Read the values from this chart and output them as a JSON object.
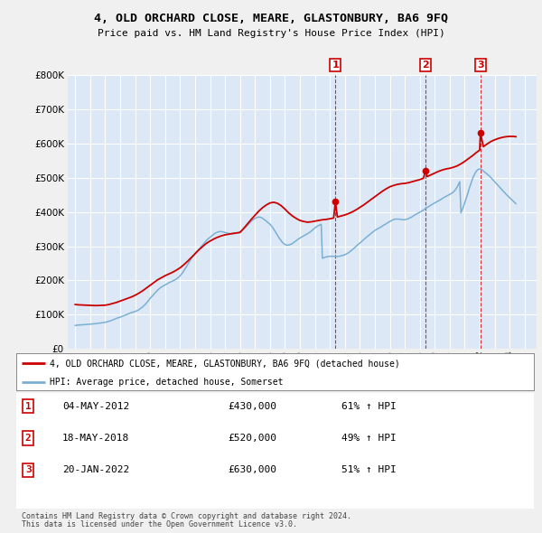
{
  "title": "4, OLD ORCHARD CLOSE, MEARE, GLASTONBURY, BA6 9FQ",
  "subtitle": "Price paid vs. HM Land Registry's House Price Index (HPI)",
  "background_color": "#f0f0f0",
  "plot_bg_color": "#dce8f5",
  "legend_bg": "#ffffff",
  "table_bg": "#ffffff",
  "red_line_label": "4, OLD ORCHARD CLOSE, MEARE, GLASTONBURY, BA6 9FQ (detached house)",
  "blue_line_label": "HPI: Average price, detached house, Somerset",
  "transactions": [
    {
      "num": 1,
      "date": "04-MAY-2012",
      "price": 430000,
      "pct": "61%",
      "x_year": 2012.37
    },
    {
      "num": 2,
      "date": "18-MAY-2018",
      "price": 520000,
      "pct": "49%",
      "x_year": 2018.38
    },
    {
      "num": 3,
      "date": "20-JAN-2022",
      "price": 630000,
      "pct": "51%",
      "x_year": 2022.05
    }
  ],
  "footer1": "Contains HM Land Registry data © Crown copyright and database right 2024.",
  "footer2": "This data is licensed under the Open Government Licence v3.0.",
  "ylim": [
    0,
    800000
  ],
  "yticks": [
    0,
    100000,
    200000,
    300000,
    400000,
    500000,
    600000,
    700000,
    800000
  ],
  "xlim_start": 1994.5,
  "xlim_end": 2025.8,
  "xtick_years": [
    1995,
    1996,
    1997,
    1998,
    1999,
    2000,
    2001,
    2002,
    2003,
    2004,
    2005,
    2006,
    2007,
    2008,
    2009,
    2010,
    2011,
    2012,
    2013,
    2014,
    2015,
    2016,
    2017,
    2018,
    2019,
    2020,
    2021,
    2022,
    2023,
    2024,
    2025
  ],
  "hpi_x": [
    1995.0,
    1995.08,
    1995.17,
    1995.25,
    1995.33,
    1995.42,
    1995.5,
    1995.58,
    1995.67,
    1995.75,
    1995.83,
    1995.92,
    1996.0,
    1996.08,
    1996.17,
    1996.25,
    1996.33,
    1996.42,
    1996.5,
    1996.58,
    1996.67,
    1996.75,
    1996.83,
    1996.92,
    1997.0,
    1997.08,
    1997.17,
    1997.25,
    1997.33,
    1997.42,
    1997.5,
    1997.58,
    1997.67,
    1997.75,
    1997.83,
    1997.92,
    1998.0,
    1998.08,
    1998.17,
    1998.25,
    1998.33,
    1998.42,
    1998.5,
    1998.58,
    1998.67,
    1998.75,
    1998.83,
    1998.92,
    1999.0,
    1999.08,
    1999.17,
    1999.25,
    1999.33,
    1999.42,
    1999.5,
    1999.58,
    1999.67,
    1999.75,
    1999.83,
    1999.92,
    2000.0,
    2000.08,
    2000.17,
    2000.25,
    2000.33,
    2000.42,
    2000.5,
    2000.58,
    2000.67,
    2000.75,
    2000.83,
    2000.92,
    2001.0,
    2001.08,
    2001.17,
    2001.25,
    2001.33,
    2001.42,
    2001.5,
    2001.58,
    2001.67,
    2001.75,
    2001.83,
    2001.92,
    2002.0,
    2002.08,
    2002.17,
    2002.25,
    2002.33,
    2002.42,
    2002.5,
    2002.58,
    2002.67,
    2002.75,
    2002.83,
    2002.92,
    2003.0,
    2003.08,
    2003.17,
    2003.25,
    2003.33,
    2003.42,
    2003.5,
    2003.58,
    2003.67,
    2003.75,
    2003.83,
    2003.92,
    2004.0,
    2004.08,
    2004.17,
    2004.25,
    2004.33,
    2004.42,
    2004.5,
    2004.58,
    2004.67,
    2004.75,
    2004.83,
    2004.92,
    2005.0,
    2005.08,
    2005.17,
    2005.25,
    2005.33,
    2005.42,
    2005.5,
    2005.58,
    2005.67,
    2005.75,
    2005.83,
    2005.92,
    2006.0,
    2006.08,
    2006.17,
    2006.25,
    2006.33,
    2006.42,
    2006.5,
    2006.58,
    2006.67,
    2006.75,
    2006.83,
    2006.92,
    2007.0,
    2007.08,
    2007.17,
    2007.25,
    2007.33,
    2007.42,
    2007.5,
    2007.58,
    2007.67,
    2007.75,
    2007.83,
    2007.92,
    2008.0,
    2008.08,
    2008.17,
    2008.25,
    2008.33,
    2008.42,
    2008.5,
    2008.58,
    2008.67,
    2008.75,
    2008.83,
    2008.92,
    2009.0,
    2009.08,
    2009.17,
    2009.25,
    2009.33,
    2009.42,
    2009.5,
    2009.58,
    2009.67,
    2009.75,
    2009.83,
    2009.92,
    2010.0,
    2010.08,
    2010.17,
    2010.25,
    2010.33,
    2010.42,
    2010.5,
    2010.58,
    2010.67,
    2010.75,
    2010.83,
    2010.92,
    2011.0,
    2011.08,
    2011.17,
    2011.25,
    2011.33,
    2011.42,
    2011.5,
    2011.58,
    2011.67,
    2011.75,
    2011.83,
    2011.92,
    2012.0,
    2012.08,
    2012.17,
    2012.25,
    2012.33,
    2012.42,
    2012.5,
    2012.58,
    2012.67,
    2012.75,
    2012.83,
    2012.92,
    2013.0,
    2013.08,
    2013.17,
    2013.25,
    2013.33,
    2013.42,
    2013.5,
    2013.58,
    2013.67,
    2013.75,
    2013.83,
    2013.92,
    2014.0,
    2014.08,
    2014.17,
    2014.25,
    2014.33,
    2014.42,
    2014.5,
    2014.58,
    2014.67,
    2014.75,
    2014.83,
    2014.92,
    2015.0,
    2015.08,
    2015.17,
    2015.25,
    2015.33,
    2015.42,
    2015.5,
    2015.58,
    2015.67,
    2015.75,
    2015.83,
    2015.92,
    2016.0,
    2016.08,
    2016.17,
    2016.25,
    2016.33,
    2016.42,
    2016.5,
    2016.58,
    2016.67,
    2016.75,
    2016.83,
    2016.92,
    2017.0,
    2017.08,
    2017.17,
    2017.25,
    2017.33,
    2017.42,
    2017.5,
    2017.58,
    2017.67,
    2017.75,
    2017.83,
    2017.92,
    2018.0,
    2018.08,
    2018.17,
    2018.25,
    2018.33,
    2018.42,
    2018.5,
    2018.58,
    2018.67,
    2018.75,
    2018.83,
    2018.92,
    2019.0,
    2019.08,
    2019.17,
    2019.25,
    2019.33,
    2019.42,
    2019.5,
    2019.58,
    2019.67,
    2019.75,
    2019.83,
    2019.92,
    2020.0,
    2020.08,
    2020.17,
    2020.25,
    2020.33,
    2020.42,
    2020.5,
    2020.58,
    2020.67,
    2020.75,
    2020.83,
    2020.92,
    2021.0,
    2021.08,
    2021.17,
    2021.25,
    2021.33,
    2021.42,
    2021.5,
    2021.58,
    2021.67,
    2021.75,
    2021.83,
    2021.92,
    2022.0,
    2022.08,
    2022.17,
    2022.25,
    2022.33,
    2022.42,
    2022.5,
    2022.58,
    2022.67,
    2022.75,
    2022.83,
    2022.92,
    2023.0,
    2023.08,
    2023.17,
    2023.25,
    2023.33,
    2023.42,
    2023.5,
    2023.58,
    2023.67,
    2023.75,
    2023.83,
    2023.92,
    2024.0,
    2024.08,
    2024.17,
    2024.25,
    2024.33,
    2024.42
  ],
  "hpi_y": [
    69000,
    69500,
    70000,
    70200,
    70500,
    70800,
    71000,
    71200,
    71500,
    71800,
    72000,
    72200,
    72500,
    72800,
    73200,
    73500,
    74000,
    74500,
    75000,
    75500,
    76000,
    76500,
    77000,
    77500,
    78000,
    79000,
    80000,
    81000,
    82000,
    83500,
    85000,
    86500,
    88000,
    89500,
    91000,
    92000,
    93000,
    94500,
    96000,
    97500,
    99000,
    100500,
    102000,
    103500,
    105000,
    106500,
    107500,
    108500,
    109500,
    111000,
    113000,
    115000,
    117500,
    120000,
    123000,
    126500,
    130000,
    134000,
    138500,
    143000,
    148000,
    152000,
    156000,
    160000,
    164000,
    168000,
    172000,
    175000,
    178000,
    181000,
    183000,
    185000,
    187000,
    189000,
    191000,
    193500,
    195000,
    196500,
    198000,
    200000,
    202000,
    204500,
    207000,
    210000,
    214000,
    218000,
    223000,
    228000,
    234000,
    240000,
    246000,
    252000,
    258000,
    264000,
    269000,
    274000,
    279000,
    283000,
    287000,
    291000,
    295000,
    299000,
    303000,
    307500,
    312000,
    316000,
    320000,
    323000,
    326000,
    329000,
    332000,
    335000,
    337500,
    339500,
    341000,
    342000,
    342500,
    342500,
    342000,
    341000,
    340000,
    339000,
    338000,
    337000,
    336500,
    336000,
    336000,
    336500,
    337000,
    338000,
    339000,
    340000,
    342000,
    344000,
    347000,
    350000,
    353500,
    357000,
    361000,
    365000,
    369000,
    372500,
    376000,
    378500,
    381000,
    383000,
    384500,
    385000,
    384500,
    383500,
    381500,
    379000,
    376000,
    373000,
    370000,
    367000,
    364000,
    360000,
    355000,
    350000,
    344000,
    338000,
    332000,
    326000,
    320500,
    315500,
    311000,
    307500,
    305000,
    303500,
    303000,
    303500,
    304500,
    306000,
    308000,
    310500,
    313000,
    316000,
    319000,
    321500,
    324000,
    326000,
    328000,
    330000,
    332000,
    334000,
    336000,
    338500,
    341000,
    344000,
    347000,
    350000,
    353000,
    356000,
    358000,
    360000,
    362000,
    364000,
    265000,
    266000,
    267500,
    268500,
    269500,
    270000,
    270500,
    270500,
    270500,
    270500,
    270000,
    270000,
    270000,
    270500,
    271000,
    272000,
    273000,
    274000,
    275000,
    277000,
    279000,
    281000,
    284000,
    287000,
    290000,
    293000,
    296000,
    299500,
    303000,
    306000,
    309000,
    312000,
    315500,
    319000,
    322000,
    325000,
    328000,
    331000,
    334000,
    337000,
    340000,
    343000,
    346000,
    348000,
    350000,
    352000,
    354000,
    356000,
    358500,
    361000,
    363000,
    365000,
    367500,
    370000,
    372000,
    374000,
    376000,
    377500,
    378500,
    379000,
    379000,
    379000,
    378500,
    378000,
    377500,
    377000,
    377500,
    378000,
    379000,
    380500,
    382000,
    384000,
    386000,
    388500,
    391000,
    393000,
    395000,
    397000,
    399000,
    401000,
    403000,
    405500,
    408000,
    410500,
    413000,
    415000,
    417500,
    420000,
    422000,
    424000,
    426000,
    428000,
    430000,
    432000,
    434000,
    436000,
    438500,
    441000,
    443000,
    445000,
    447000,
    449000,
    451000,
    453000,
    455000,
    458000,
    462000,
    467000,
    473000,
    480000,
    488000,
    397000,
    406000,
    416000,
    426000,
    437000,
    448000,
    460000,
    472000,
    483000,
    493000,
    503000,
    510000,
    517000,
    521000,
    524000,
    525000,
    524000,
    522000,
    519000,
    516000,
    513000,
    510000,
    507000,
    504000,
    500000,
    496000,
    492000,
    488000,
    484000,
    480000,
    476000,
    472000,
    468000,
    464000,
    460000,
    456000,
    452000,
    448500,
    445000,
    441500,
    438000,
    434500,
    431000,
    427500,
    424000,
    420500,
    417000,
    414500,
    412000,
    410000,
    408000,
    406000,
    404000,
    402000,
    400000,
    398000,
    396000,
    394000,
    392000,
    390000,
    388000,
    387000,
    386000
  ],
  "red_x": [
    1995.0,
    1995.25,
    1995.5,
    1995.75,
    1996.0,
    1996.25,
    1996.5,
    1996.75,
    1997.0,
    1997.25,
    1997.5,
    1997.75,
    1998.0,
    1998.25,
    1998.5,
    1998.75,
    1999.0,
    1999.25,
    1999.5,
    1999.75,
    2000.0,
    2000.25,
    2000.5,
    2000.75,
    2001.0,
    2001.25,
    2001.5,
    2001.75,
    2002.0,
    2002.25,
    2002.5,
    2002.75,
    2003.0,
    2003.25,
    2003.5,
    2003.75,
    2004.0,
    2004.25,
    2004.5,
    2004.75,
    2005.0,
    2005.25,
    2005.5,
    2005.75,
    2006.0,
    2006.25,
    2006.5,
    2006.75,
    2007.0,
    2007.25,
    2007.5,
    2007.75,
    2008.0,
    2008.25,
    2008.5,
    2008.75,
    2009.0,
    2009.25,
    2009.5,
    2009.75,
    2010.0,
    2010.25,
    2010.5,
    2010.75,
    2011.0,
    2011.25,
    2011.5,
    2011.75,
    2012.0,
    2012.25,
    2012.37,
    2012.5,
    2012.75,
    2013.0,
    2013.25,
    2013.5,
    2013.75,
    2014.0,
    2014.25,
    2014.5,
    2014.75,
    2015.0,
    2015.25,
    2015.5,
    2015.75,
    2016.0,
    2016.25,
    2016.5,
    2016.75,
    2017.0,
    2017.25,
    2017.5,
    2017.75,
    2018.0,
    2018.25,
    2018.38,
    2018.5,
    2018.75,
    2019.0,
    2019.25,
    2019.5,
    2019.75,
    2020.0,
    2020.25,
    2020.5,
    2020.75,
    2021.0,
    2021.25,
    2021.5,
    2021.75,
    2022.0,
    2022.05,
    2022.25,
    2022.5,
    2022.75,
    2023.0,
    2023.25,
    2023.5,
    2023.75,
    2024.0,
    2024.25,
    2024.42
  ],
  "red_y": [
    130000,
    129000,
    128500,
    128000,
    127500,
    127000,
    127000,
    127500,
    128000,
    130000,
    133000,
    136000,
    140000,
    144000,
    148000,
    152000,
    157000,
    163000,
    170000,
    178000,
    186000,
    194000,
    202000,
    208000,
    214000,
    219000,
    224000,
    230000,
    237000,
    246000,
    256000,
    267000,
    278000,
    289000,
    299000,
    308000,
    315000,
    321000,
    326000,
    330000,
    333000,
    335000,
    337000,
    338500,
    340000,
    352000,
    365000,
    378000,
    390000,
    402000,
    412000,
    420000,
    426000,
    428000,
    425000,
    418000,
    408000,
    397000,
    388000,
    381000,
    375000,
    372000,
    370000,
    371000,
    373000,
    375000,
    377000,
    378000,
    380000,
    382000,
    430000,
    385000,
    388000,
    391000,
    395000,
    400000,
    406000,
    413000,
    420000,
    428000,
    436000,
    444000,
    452000,
    460000,
    467000,
    473000,
    477000,
    480000,
    482000,
    483000,
    485000,
    488000,
    491000,
    494000,
    498000,
    520000,
    503000,
    508000,
    513000,
    518000,
    522000,
    525000,
    527000,
    530000,
    534000,
    540000,
    547000,
    555000,
    563000,
    572000,
    580000,
    630000,
    590000,
    598000,
    605000,
    610000,
    614000,
    617000,
    619000,
    620000,
    620000,
    619000
  ]
}
